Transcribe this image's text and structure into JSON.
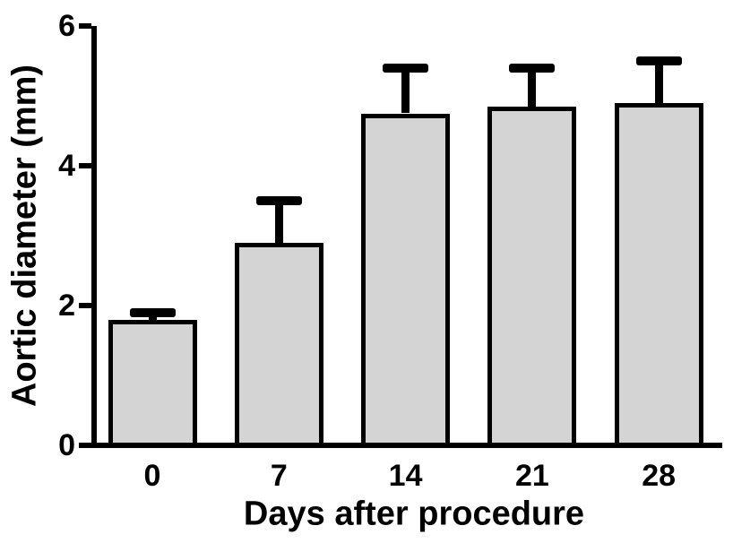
{
  "chart_data": {
    "type": "bar",
    "title": "",
    "xlabel": "Days after procedure",
    "ylabel": "Aortic diameter (mm)",
    "categories": [
      "0",
      "7",
      "14",
      "21",
      "28"
    ],
    "values": [
      1.8,
      2.9,
      4.75,
      4.85,
      4.9
    ],
    "errors_upper": [
      0.1,
      0.6,
      0.65,
      0.55,
      0.6
    ],
    "series_name": "Aortic diameter (mm)",
    "ylim": [
      0,
      6
    ],
    "yticks": [
      0,
      2,
      4,
      6
    ],
    "grid": false,
    "legend": "none",
    "error_bar_style": "upper whisker with cap, about half bar width",
    "colors": {
      "bar_fill": "#d4d4d4",
      "bar_border": "#000000",
      "axis": "#000000",
      "text": "#000000",
      "background": "#ffffff"
    }
  }
}
